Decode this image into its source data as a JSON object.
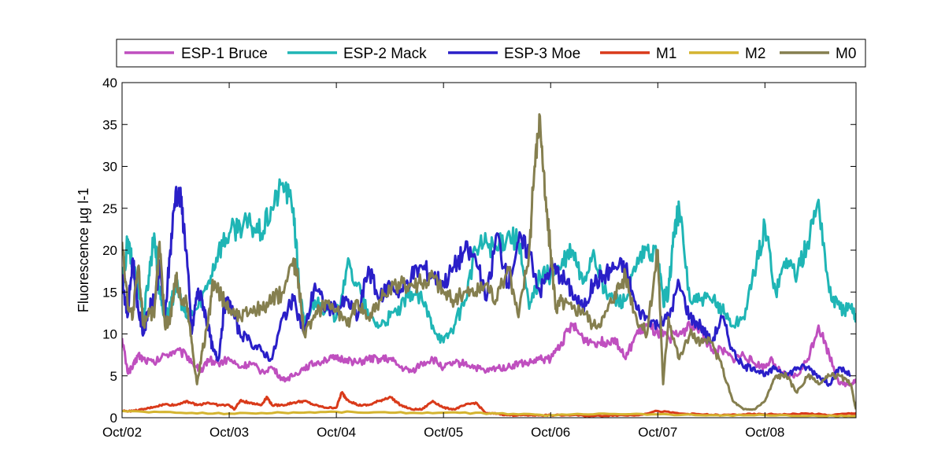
{
  "chart_data": {
    "type": "line",
    "title": "",
    "xlabel": "",
    "ylabel": "Fluorescence µg l-1",
    "xlim": [
      0,
      6.85
    ],
    "ylim": [
      0,
      40
    ],
    "x_tick_values": [
      0,
      1,
      2,
      3,
      4,
      5,
      6
    ],
    "x_tick_labels": [
      "Oct/02",
      "Oct/03",
      "Oct/04",
      "Oct/05",
      "Oct/06",
      "Oct/07",
      "Oct/08"
    ],
    "y_ticks": [
      0,
      5,
      10,
      15,
      20,
      25,
      30,
      35,
      40
    ],
    "grid": false,
    "legend_position": "top",
    "series": [
      {
        "name": "ESP-1 Bruce",
        "color": "#bf4fbf",
        "x": [
          0,
          0.05,
          0.1,
          0.15,
          0.2,
          0.3,
          0.4,
          0.5,
          0.6,
          0.7,
          0.75,
          0.8,
          0.9,
          1.0,
          1.1,
          1.2,
          1.3,
          1.4,
          1.5,
          1.6,
          1.7,
          1.8,
          1.9,
          2.0,
          2.1,
          2.2,
          2.3,
          2.4,
          2.5,
          2.6,
          2.7,
          2.8,
          2.9,
          3.0,
          3.1,
          3.2,
          3.3,
          3.4,
          3.5,
          3.6,
          3.7,
          3.8,
          3.9,
          4.0,
          4.1,
          4.2,
          4.3,
          4.4,
          4.5,
          4.6,
          4.7,
          4.8,
          4.9,
          5.0,
          5.1,
          5.2,
          5.3,
          5.4,
          5.5,
          5.6,
          5.7,
          5.8,
          5.9,
          6.0,
          6.05,
          6.1,
          6.2,
          6.3,
          6.4,
          6.5,
          6.6,
          6.7,
          6.8,
          6.85
        ],
        "y": [
          9.5,
          5.5,
          6,
          7.5,
          7,
          6.5,
          7.5,
          8,
          7.5,
          6,
          5.5,
          7,
          6.5,
          7,
          6,
          6.5,
          5.5,
          6,
          4.5,
          5,
          6,
          6.5,
          7,
          7,
          7,
          6.5,
          7,
          7,
          7,
          6,
          5.5,
          6.5,
          7,
          6,
          6.5,
          6.5,
          6,
          5.5,
          6,
          6,
          6.5,
          6.5,
          7,
          7,
          9,
          11,
          9.5,
          9,
          9,
          9.5,
          7,
          10,
          11,
          10,
          9.5,
          10,
          11,
          10.5,
          8,
          8,
          7,
          7.5,
          6.5,
          6,
          7,
          6,
          5,
          5,
          7,
          11,
          7.5,
          4,
          4,
          4.5
        ]
      },
      {
        "name": "ESP-2 Mack",
        "color": "#1fb5b5",
        "x": [
          0,
          0.05,
          0.1,
          0.15,
          0.2,
          0.25,
          0.3,
          0.35,
          0.4,
          0.45,
          0.5,
          0.55,
          0.6,
          0.7,
          0.8,
          0.9,
          1.0,
          1.1,
          1.2,
          1.3,
          1.4,
          1.5,
          1.6,
          1.65,
          1.7,
          1.8,
          1.9,
          2.0,
          2.1,
          2.2,
          2.3,
          2.4,
          2.5,
          2.6,
          2.7,
          2.8,
          2.9,
          3.0,
          3.1,
          3.2,
          3.3,
          3.4,
          3.5,
          3.6,
          3.7,
          3.8,
          3.9,
          4.0,
          4.1,
          4.2,
          4.3,
          4.4,
          4.5,
          4.6,
          4.7,
          4.8,
          4.9,
          5.0,
          5.05,
          5.1,
          5.15,
          5.2,
          5.3,
          5.4,
          5.5,
          5.6,
          5.7,
          5.8,
          5.9,
          6.0,
          6.1,
          6.2,
          6.3,
          6.4,
          6.5,
          6.6,
          6.7,
          6.8,
          6.85
        ],
        "y": [
          15,
          21,
          18,
          16,
          12,
          17,
          22,
          15,
          12,
          13,
          16,
          14,
          12,
          13,
          16,
          20,
          22,
          23,
          23,
          22,
          25,
          28,
          25,
          16,
          11,
          14,
          13,
          12,
          18,
          16,
          12,
          11,
          12,
          13,
          15,
          14,
          11,
          9,
          11,
          14,
          20,
          21,
          20,
          22,
          21,
          13,
          17,
          17,
          18,
          20,
          16,
          20,
          15,
          14,
          14,
          18,
          20,
          19,
          14,
          15,
          22,
          25,
          14,
          14,
          14,
          13,
          11,
          12,
          17,
          23,
          15,
          19,
          17,
          21,
          26,
          15,
          13,
          13,
          12
        ]
      },
      {
        "name": "ESP-3 Moe",
        "color": "#2a1fc8",
        "x": [
          0,
          0.05,
          0.1,
          0.15,
          0.2,
          0.25,
          0.3,
          0.35,
          0.4,
          0.45,
          0.5,
          0.55,
          0.6,
          0.65,
          0.7,
          0.75,
          0.8,
          0.85,
          0.9,
          0.95,
          1.0,
          1.1,
          1.2,
          1.3,
          1.4,
          1.5,
          1.6,
          1.7,
          1.8,
          1.9,
          2.0,
          2.1,
          2.2,
          2.3,
          2.4,
          2.5,
          2.6,
          2.7,
          2.8,
          2.9,
          3.0,
          3.1,
          3.2,
          3.3,
          3.4,
          3.5,
          3.6,
          3.7,
          3.8,
          3.9,
          4.0,
          4.1,
          4.2,
          4.3,
          4.4,
          4.5,
          4.6,
          4.7,
          4.8,
          4.9,
          5.0,
          5.1,
          5.2,
          5.3,
          5.4,
          5.5,
          5.6,
          5.7,
          5.8,
          5.9,
          6.0,
          6.1,
          6.2,
          6.3,
          6.4,
          6.5,
          6.6,
          6.7,
          6.8
        ],
        "y": [
          17,
          12,
          19,
          13,
          10,
          13,
          14,
          18,
          12,
          20,
          27,
          26,
          20,
          10,
          15,
          14,
          11,
          8,
          7,
          13,
          14,
          10,
          9,
          8,
          7,
          12,
          14,
          10,
          16,
          13,
          13,
          14,
          12,
          18,
          14,
          16,
          15,
          17,
          18,
          17,
          16,
          18,
          20,
          19,
          14,
          22,
          16,
          21,
          20,
          15,
          18,
          17,
          15,
          13,
          16,
          17,
          18,
          18,
          13,
          12,
          11,
          12,
          16,
          12,
          11,
          9,
          12,
          8,
          6,
          6,
          5,
          6,
          5,
          6,
          6,
          5,
          4,
          6,
          5
        ]
      },
      {
        "name": "M1",
        "color": "#d93a1a",
        "x": [
          0,
          0.1,
          0.2,
          0.3,
          0.4,
          0.5,
          0.6,
          0.7,
          0.8,
          0.9,
          1.0,
          1.05,
          1.1,
          1.2,
          1.3,
          1.35,
          1.4,
          1.5,
          1.6,
          1.7,
          1.8,
          1.9,
          2.0,
          2.05,
          2.1,
          2.2,
          2.3,
          2.4,
          2.5,
          2.6,
          2.7,
          2.8,
          2.9,
          3.0,
          3.1,
          3.2,
          3.3,
          3.4,
          3.5,
          3.6,
          3.7,
          3.8,
          3.9,
          4.0,
          4.2,
          4.4,
          4.6,
          4.8,
          5.0,
          5.2,
          5.4,
          5.6,
          5.8,
          6.0,
          6.2,
          6.4,
          6.6,
          6.8,
          6.85
        ],
        "y": [
          0.8,
          0.8,
          1,
          1.3,
          1.6,
          1.5,
          2,
          1.5,
          1.8,
          1.5,
          1.5,
          1,
          2,
          1.8,
          1.5,
          2.5,
          1.5,
          1.5,
          1.8,
          2,
          1.5,
          1.2,
          1.2,
          3,
          2.2,
          1.5,
          1.5,
          2,
          2.5,
          1.5,
          1,
          1,
          2,
          1.2,
          1,
          1.5,
          1.8,
          0.5,
          0.5,
          0.3,
          0.3,
          0.3,
          0.3,
          0.3,
          0.3,
          0.2,
          0.3,
          0.3,
          0.8,
          0.5,
          0.4,
          0.3,
          0.4,
          0.4,
          0.4,
          0.5,
          0.3,
          0.5,
          0.5
        ]
      },
      {
        "name": "M2",
        "color": "#d4b430",
        "x": [
          0,
          0.5,
          1.0,
          1.5,
          2.0,
          2.5,
          3.0,
          3.5,
          4.0,
          4.5,
          5.0,
          5.5,
          6.0,
          6.5,
          6.85
        ],
        "y": [
          0.8,
          0.6,
          0.5,
          0.6,
          0.7,
          0.6,
          0.6,
          0.5,
          0.3,
          0.5,
          0.4,
          0.3,
          0.3,
          0.2,
          0.2
        ]
      },
      {
        "name": "M0",
        "color": "#857f4f",
        "x": [
          0,
          0.05,
          0.1,
          0.15,
          0.2,
          0.25,
          0.3,
          0.35,
          0.4,
          0.45,
          0.5,
          0.55,
          0.6,
          0.65,
          0.7,
          0.75,
          0.8,
          0.85,
          0.9,
          0.95,
          1.0,
          1.1,
          1.2,
          1.3,
          1.4,
          1.5,
          1.6,
          1.65,
          1.7,
          1.8,
          1.9,
          2.0,
          2.1,
          2.2,
          2.3,
          2.4,
          2.5,
          2.6,
          2.7,
          2.8,
          2.9,
          3.0,
          3.1,
          3.2,
          3.3,
          3.4,
          3.5,
          3.6,
          3.7,
          3.8,
          3.85,
          3.9,
          3.95,
          4.0,
          4.05,
          4.1,
          4.2,
          4.3,
          4.4,
          4.5,
          4.6,
          4.7,
          4.8,
          4.9,
          5.0,
          5.05,
          5.1,
          5.2,
          5.3,
          5.4,
          5.5,
          5.6,
          5.7,
          5.8,
          5.9,
          6.0,
          6.1,
          6.2,
          6.3,
          6.4,
          6.5,
          6.6,
          6.7,
          6.8,
          6.85
        ],
        "y": [
          21,
          14,
          12,
          18,
          11,
          13,
          12,
          21,
          11,
          12,
          17,
          14,
          14,
          9,
          4,
          8,
          11,
          16,
          15,
          14,
          13,
          12,
          13,
          13,
          14,
          15,
          19,
          16,
          10,
          12,
          14,
          13,
          11,
          14,
          12,
          14,
          15,
          16,
          16,
          16,
          17,
          15,
          14,
          15,
          15,
          16,
          14,
          18,
          12,
          20,
          30,
          36,
          26,
          20,
          13,
          14,
          13,
          13,
          11,
          12,
          15,
          17,
          12,
          10,
          20,
          4,
          12,
          7,
          10,
          9,
          9,
          6,
          2,
          1,
          1,
          2,
          5,
          5,
          3,
          5,
          4,
          5,
          5,
          4,
          1
        ]
      }
    ]
  }
}
